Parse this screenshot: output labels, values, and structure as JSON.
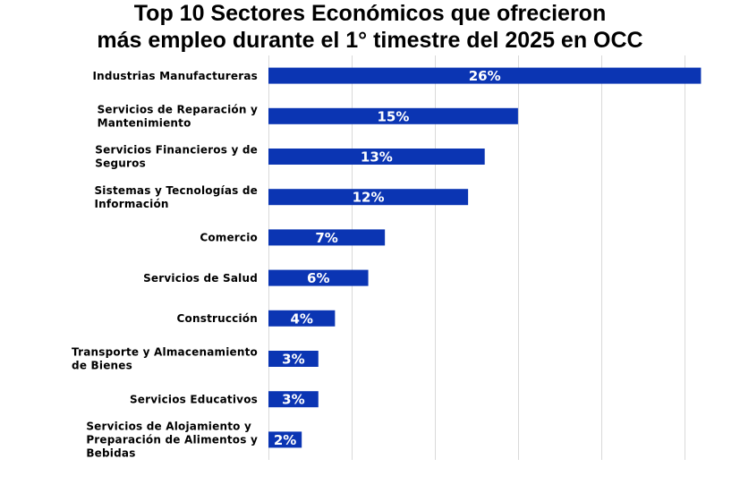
{
  "chart_data": {
    "type": "bar",
    "orientation": "horizontal",
    "title": "Top 10 Sectores Económicos que ofrecieron más empleo durante el 1° timestre del 2025 en OCC",
    "title_lines": [
      "Top 10 Sectores Económicos que ofrecieron",
      "más empleo durante el 1° timestre del 2025 en OCC"
    ],
    "categories": [
      "Industrias Manufactureras",
      "Servicios de Reparación y Mantenimiento",
      "Servicios Financieros y de Seguros",
      "Sistemas y Tecnologías de Información",
      "Comercio",
      "Servicios de Salud",
      "Construcción",
      "Transporte y Almacenamiento de Bienes",
      "Servicios Educativos",
      "Servicios de Alojamiento y Preparación de Alimentos y Bebidas"
    ],
    "category_label_lines": [
      [
        "Industrias Manufactureras"
      ],
      [
        "Servicios de Reparación y",
        "Mantenimiento"
      ],
      [
        "Servicios Financieros y de",
        "Seguros"
      ],
      [
        "Sistemas y Tecnologías de",
        "Información"
      ],
      [
        "Comercio"
      ],
      [
        "Servicios de Salud"
      ],
      [
        "Construcción"
      ],
      [
        "Transporte y Almacenamiento",
        "de Bienes"
      ],
      [
        "Servicios Educativos"
      ],
      [
        "Servicios de Alojamiento y",
        "Preparación de Alimentos y",
        "Bebidas"
      ]
    ],
    "values": [
      26,
      15,
      13,
      12,
      7,
      6,
      4,
      3,
      3,
      2
    ],
    "data_labels": [
      "26%",
      "15%",
      "13%",
      "12%",
      "7%",
      "6%",
      "4%",
      "3%",
      "3%",
      "2%"
    ],
    "xlim": [
      0,
      27
    ],
    "grid_step": 5,
    "grid": true,
    "bar_color": "#0b35b3",
    "label_color": "#ffffff"
  }
}
